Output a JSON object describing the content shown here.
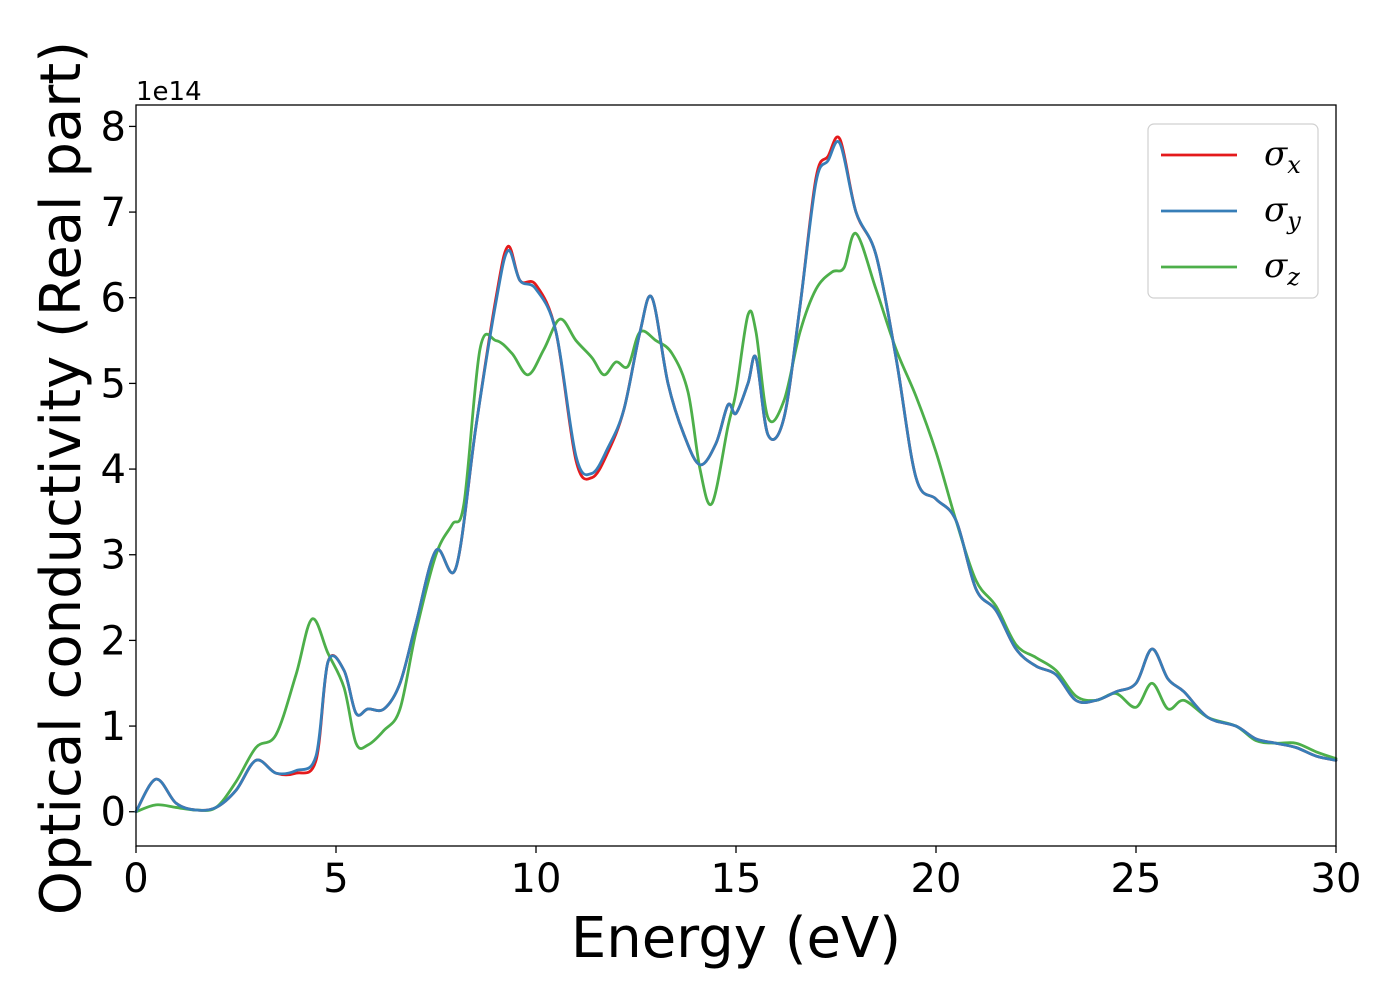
{
  "chart_data": {
    "type": "line",
    "xlabel": "Energy (eV)",
    "ylabel": "Optical conductivity (Real part)",
    "y_offset_label": "1e14",
    "xlim": [
      0,
      30
    ],
    "ylim": [
      -0.4,
      8.25
    ],
    "y_scale_factor": 100000000000000.0,
    "x_ticks": [
      0,
      5,
      10,
      15,
      20,
      25,
      30
    ],
    "y_ticks": [
      0,
      1,
      2,
      3,
      4,
      5,
      6,
      7,
      8
    ],
    "grid": false,
    "legend_position": "top-right",
    "series": [
      {
        "name": "σx",
        "label_base": "σ",
        "label_sub": "x",
        "color": "#e41a1c",
        "x": [
          0,
          0.5,
          1.0,
          1.5,
          2.0,
          2.5,
          3.0,
          3.5,
          4.0,
          4.5,
          4.8,
          5.2,
          5.5,
          5.8,
          6.2,
          6.6,
          7.0,
          7.5,
          8.0,
          8.5,
          9.0,
          9.3,
          9.6,
          10.0,
          10.5,
          11.0,
          11.4,
          11.8,
          12.2,
          12.6,
          12.9,
          13.3,
          13.7,
          14.1,
          14.5,
          14.8,
          15.0,
          15.3,
          15.5,
          15.8,
          16.2,
          16.6,
          17.0,
          17.3,
          17.6,
          18.0,
          18.5,
          19.0,
          19.5,
          20.0,
          20.5,
          21.0,
          21.5,
          22.0,
          22.5,
          23.0,
          23.5,
          24.0,
          24.5,
          25.0,
          25.4,
          25.8,
          26.2,
          26.8,
          27.5,
          28.0,
          28.5,
          29.0,
          29.5,
          30.0
        ],
        "y": [
          0.0,
          0.38,
          0.1,
          0.02,
          0.05,
          0.25,
          0.6,
          0.45,
          0.45,
          0.6,
          1.75,
          1.65,
          1.15,
          1.2,
          1.2,
          1.5,
          2.2,
          3.05,
          2.85,
          4.5,
          6.0,
          6.6,
          6.2,
          6.15,
          5.6,
          4.1,
          3.9,
          4.2,
          4.7,
          5.6,
          6.0,
          5.0,
          4.4,
          4.05,
          4.3,
          4.75,
          4.65,
          5.0,
          5.3,
          4.4,
          4.6,
          5.9,
          7.4,
          7.65,
          7.85,
          7.0,
          6.5,
          5.3,
          3.9,
          3.65,
          3.4,
          2.6,
          2.35,
          1.9,
          1.7,
          1.6,
          1.3,
          1.3,
          1.4,
          1.5,
          1.9,
          1.55,
          1.4,
          1.1,
          1.0,
          0.85,
          0.8,
          0.75,
          0.65,
          0.6
        ]
      },
      {
        "name": "σy",
        "label_base": "σ",
        "label_sub": "y",
        "color": "#377eb8",
        "x": [
          0,
          0.5,
          1.0,
          1.5,
          2.0,
          2.5,
          3.0,
          3.5,
          4.0,
          4.5,
          4.8,
          5.2,
          5.5,
          5.8,
          6.2,
          6.6,
          7.0,
          7.5,
          8.0,
          8.5,
          9.0,
          9.3,
          9.6,
          10.0,
          10.5,
          11.0,
          11.4,
          11.8,
          12.2,
          12.6,
          12.9,
          13.3,
          13.7,
          14.1,
          14.5,
          14.8,
          15.0,
          15.3,
          15.5,
          15.8,
          16.2,
          16.6,
          17.0,
          17.3,
          17.6,
          18.0,
          18.5,
          19.0,
          19.5,
          20.0,
          20.5,
          21.0,
          21.5,
          22.0,
          22.5,
          23.0,
          23.5,
          24.0,
          24.5,
          25.0,
          25.4,
          25.8,
          26.2,
          26.8,
          27.5,
          28.0,
          28.5,
          29.0,
          29.5,
          30.0
        ],
        "y": [
          0.0,
          0.38,
          0.1,
          0.02,
          0.05,
          0.25,
          0.6,
          0.45,
          0.48,
          0.65,
          1.75,
          1.65,
          1.15,
          1.2,
          1.2,
          1.5,
          2.2,
          3.05,
          2.85,
          4.5,
          5.95,
          6.55,
          6.2,
          6.1,
          5.6,
          4.15,
          3.95,
          4.25,
          4.7,
          5.6,
          6.0,
          5.0,
          4.4,
          4.05,
          4.3,
          4.75,
          4.65,
          5.0,
          5.3,
          4.4,
          4.6,
          5.9,
          7.35,
          7.6,
          7.8,
          7.0,
          6.5,
          5.3,
          3.9,
          3.65,
          3.4,
          2.6,
          2.35,
          1.9,
          1.7,
          1.6,
          1.3,
          1.3,
          1.4,
          1.5,
          1.9,
          1.55,
          1.4,
          1.1,
          1.0,
          0.85,
          0.8,
          0.75,
          0.65,
          0.6
        ]
      },
      {
        "name": "σz",
        "label_base": "σ",
        "label_sub": "z",
        "color": "#4daf4a",
        "x": [
          0,
          0.5,
          1.0,
          1.5,
          2.0,
          2.5,
          3.0,
          3.5,
          4.0,
          4.4,
          4.8,
          5.2,
          5.5,
          5.8,
          6.2,
          6.6,
          7.0,
          7.5,
          7.9,
          8.2,
          8.6,
          9.0,
          9.4,
          9.8,
          10.2,
          10.6,
          11.0,
          11.4,
          11.7,
          12.0,
          12.3,
          12.6,
          13.0,
          13.4,
          13.8,
          14.1,
          14.4,
          14.8,
          15.0,
          15.3,
          15.5,
          15.8,
          16.2,
          16.6,
          17.0,
          17.4,
          17.7,
          18.0,
          18.5,
          19.0,
          19.5,
          20.0,
          20.5,
          21.0,
          21.5,
          22.0,
          22.5,
          23.0,
          23.5,
          24.0,
          24.5,
          25.0,
          25.4,
          25.8,
          26.2,
          26.8,
          27.5,
          28.0,
          28.5,
          29.0,
          29.5,
          30.0
        ],
        "y": [
          0.0,
          0.08,
          0.05,
          0.02,
          0.05,
          0.35,
          0.75,
          0.9,
          1.6,
          2.25,
          1.85,
          1.45,
          0.8,
          0.78,
          0.95,
          1.2,
          2.1,
          3.0,
          3.35,
          3.6,
          5.4,
          5.5,
          5.35,
          5.1,
          5.4,
          5.75,
          5.5,
          5.3,
          5.1,
          5.25,
          5.2,
          5.6,
          5.5,
          5.35,
          4.9,
          4.0,
          3.6,
          4.5,
          4.9,
          5.8,
          5.6,
          4.6,
          4.8,
          5.6,
          6.1,
          6.3,
          6.35,
          6.75,
          6.1,
          5.4,
          4.85,
          4.2,
          3.4,
          2.7,
          2.4,
          1.95,
          1.8,
          1.65,
          1.35,
          1.3,
          1.38,
          1.22,
          1.5,
          1.2,
          1.3,
          1.1,
          1.0,
          0.83,
          0.8,
          0.8,
          0.7,
          0.62
        ]
      }
    ]
  }
}
